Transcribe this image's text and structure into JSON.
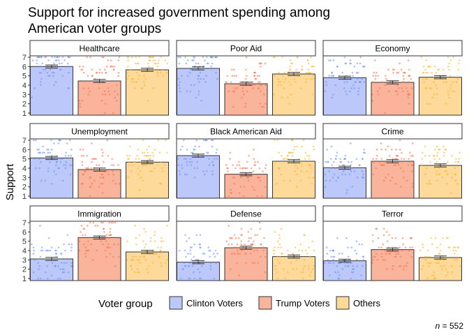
{
  "chart_data": {
    "type": "bar",
    "title": "Support for increased government spending among American voter groups",
    "title_lines": [
      "Support for increased government spending among",
      "American voter groups"
    ],
    "ylabel": "Support",
    "xlabel": "",
    "ylim": [
      1,
      7
    ],
    "yticks": [
      1,
      2,
      3,
      4,
      5,
      6,
      7
    ],
    "grid": false,
    "legend": {
      "title": "Voter group",
      "position": "bottom"
    },
    "caption_prefix": "n",
    "caption_value": " = 552",
    "groups": [
      {
        "name": "Clinton Voters",
        "fill": "#bcc8f9",
        "point": "#6d8ef7"
      },
      {
        "name": "Trump Voters",
        "fill": "#fbb49c",
        "point": "#f77048"
      },
      {
        "name": "Others",
        "fill": "#fdd99a",
        "point": "#f9b42e"
      }
    ],
    "panels": [
      {
        "name": "Healthcare",
        "values": [
          6.0,
          4.45,
          5.65
        ]
      },
      {
        "name": "Poor Aid",
        "values": [
          5.8,
          4.15,
          5.2
        ]
      },
      {
        "name": "Economy",
        "values": [
          4.8,
          4.3,
          4.85
        ]
      },
      {
        "name": "Unemployment",
        "values": [
          5.1,
          3.85,
          4.65
        ]
      },
      {
        "name": "Black American Aid",
        "values": [
          5.35,
          3.35,
          4.75
        ]
      },
      {
        "name": "Crime",
        "values": [
          4.05,
          4.75,
          4.3
        ]
      },
      {
        "name": "Immigration",
        "values": [
          3.1,
          5.4,
          3.85
        ]
      },
      {
        "name": "Defense",
        "values": [
          2.75,
          4.3,
          3.35
        ]
      },
      {
        "name": "Terror",
        "values": [
          2.9,
          4.1,
          3.25
        ]
      }
    ],
    "error_halfwidth": 0.17
  }
}
